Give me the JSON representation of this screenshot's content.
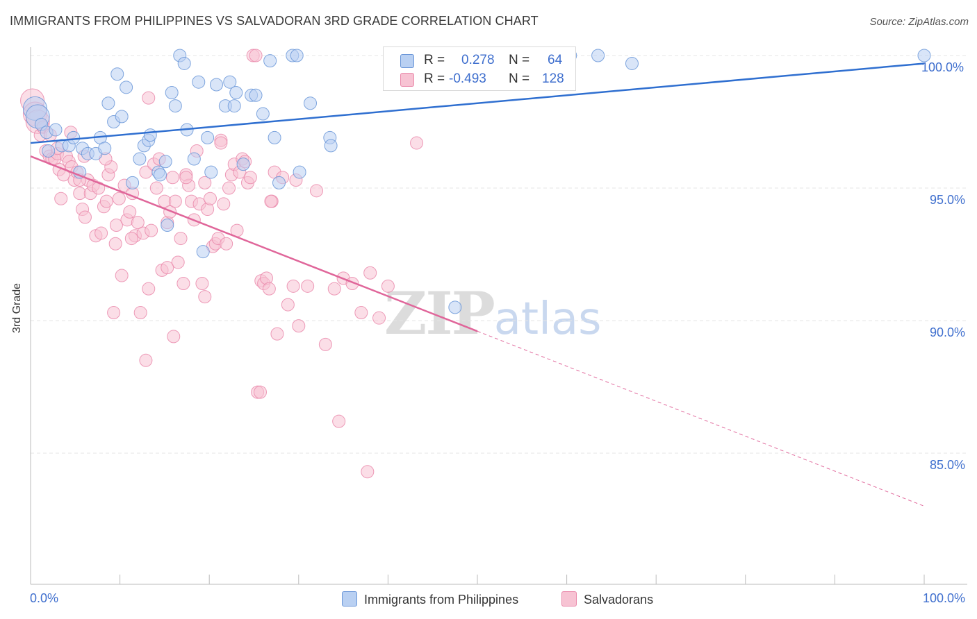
{
  "title": "IMMIGRANTS FROM PHILIPPINES VS SALVADORAN 3RD GRADE CORRELATION CHART",
  "source": "Source: ZipAtlas.com",
  "watermark": {
    "zip": "ZIP",
    "atlas": "atlas"
  },
  "legend": {
    "r_label": "R =",
    "n_label": "N =",
    "series": [
      {
        "r": "0.278",
        "n": "64"
      },
      {
        "r": "-0.493",
        "n": "128"
      }
    ]
  },
  "bottom_legend": [
    "Immigrants from Philippines",
    "Salvadorans"
  ],
  "colors": {
    "blue_fill": "#b9d0f2",
    "blue_stroke": "#6a96d8",
    "blue_line": "#2f6fd0",
    "pink_fill": "#f7c3d3",
    "pink_stroke": "#ea8aab",
    "pink_line": "#e0669a",
    "tick_text": "#3f6fce",
    "grid": "#e4e4e4"
  },
  "chart_data": {
    "type": "scatter",
    "title": "IMMIGRANTS FROM PHILIPPINES VS SALVADORAN 3RD GRADE CORRELATION CHART",
    "xlabel": "",
    "ylabel": "3rd Grade",
    "xlim": [
      0,
      100
    ],
    "ylim": [
      80.0,
      100.8
    ],
    "x_tick_labels": [
      "0.0%",
      "100.0%"
    ],
    "y_ticks": [
      85.0,
      90.0,
      95.0,
      100.0
    ],
    "y_tick_labels": [
      "85.0%",
      "90.0%",
      "95.0%",
      "100.0%"
    ],
    "grid": true,
    "legend_position": "top-center",
    "series": [
      {
        "name": "Immigrants from Philippines",
        "color": "#6a96d8",
        "trend": {
          "x": [
            0,
            100
          ],
          "y": [
            96.7,
            99.7
          ],
          "dashed_from": null
        },
        "points": [
          [
            0.5,
            98.0
          ],
          [
            0.8,
            97.7
          ],
          [
            1.2,
            97.4
          ],
          [
            1.8,
            97.1
          ],
          [
            2.0,
            96.4
          ],
          [
            2.8,
            97.2
          ],
          [
            3.5,
            96.6
          ],
          [
            4.3,
            96.6
          ],
          [
            4.8,
            96.9
          ],
          [
            5.5,
            95.6
          ],
          [
            5.8,
            96.5
          ],
          [
            6.4,
            96.3
          ],
          [
            7.3,
            96.3
          ],
          [
            7.8,
            96.9
          ],
          [
            8.3,
            96.5
          ],
          [
            8.7,
            98.2
          ],
          [
            9.3,
            97.5
          ],
          [
            9.7,
            99.3
          ],
          [
            10.2,
            97.7
          ],
          [
            10.7,
            98.8
          ],
          [
            11.4,
            95.2
          ],
          [
            12.2,
            96.1
          ],
          [
            12.7,
            96.6
          ],
          [
            13.2,
            96.8
          ],
          [
            13.4,
            97.0
          ],
          [
            14.3,
            95.6
          ],
          [
            14.5,
            95.5
          ],
          [
            15.1,
            96.0
          ],
          [
            15.3,
            93.6
          ],
          [
            15.8,
            98.6
          ],
          [
            16.2,
            98.1
          ],
          [
            16.7,
            100.0
          ],
          [
            17.2,
            99.7
          ],
          [
            17.5,
            97.2
          ],
          [
            18.3,
            96.1
          ],
          [
            18.8,
            99.0
          ],
          [
            19.3,
            92.6
          ],
          [
            19.8,
            96.9
          ],
          [
            20.2,
            95.6
          ],
          [
            20.8,
            98.9
          ],
          [
            21.8,
            98.1
          ],
          [
            22.3,
            99.0
          ],
          [
            22.8,
            98.1
          ],
          [
            23.0,
            98.6
          ],
          [
            23.8,
            95.9
          ],
          [
            24.7,
            98.5
          ],
          [
            25.2,
            98.5
          ],
          [
            26.0,
            97.8
          ],
          [
            26.8,
            99.8
          ],
          [
            27.3,
            96.9
          ],
          [
            27.8,
            95.2
          ],
          [
            29.3,
            100.0
          ],
          [
            29.8,
            100.0
          ],
          [
            30.1,
            95.6
          ],
          [
            31.3,
            98.2
          ],
          [
            33.5,
            96.9
          ],
          [
            33.6,
            96.6
          ],
          [
            47.5,
            90.5
          ],
          [
            60.4,
            100.0
          ],
          [
            63.5,
            100.0
          ],
          [
            67.3,
            99.7
          ],
          [
            100.0,
            100.0
          ]
        ]
      },
      {
        "name": "Salvadorans",
        "color": "#ea8aab",
        "trend": {
          "x": [
            0,
            100
          ],
          "y": [
            96.2,
            83.0
          ],
          "dashed_from": 50
        },
        "points": [
          [
            0.2,
            98.3
          ],
          [
            0.5,
            97.8
          ],
          [
            0.8,
            97.5
          ],
          [
            1.1,
            97.0
          ],
          [
            1.4,
            97.3
          ],
          [
            1.7,
            96.4
          ],
          [
            2.1,
            96.2
          ],
          [
            2.4,
            96.1
          ],
          [
            2.7,
            96.1
          ],
          [
            3.0,
            96.3
          ],
          [
            3.2,
            95.7
          ],
          [
            3.4,
            94.6
          ],
          [
            3.7,
            95.5
          ],
          [
            4.0,
            96.2
          ],
          [
            4.3,
            96.0
          ],
          [
            4.6,
            95.8
          ],
          [
            4.9,
            95.3
          ],
          [
            5.2,
            95.6
          ],
          [
            5.5,
            94.8
          ],
          [
            5.8,
            94.2
          ],
          [
            6.1,
            93.9
          ],
          [
            6.4,
            95.3
          ],
          [
            6.7,
            94.8
          ],
          [
            7.0,
            95.1
          ],
          [
            7.3,
            93.2
          ],
          [
            7.6,
            95.0
          ],
          [
            7.9,
            93.3
          ],
          [
            8.2,
            94.3
          ],
          [
            8.5,
            94.5
          ],
          [
            8.7,
            95.5
          ],
          [
            9.0,
            95.8
          ],
          [
            9.3,
            90.3
          ],
          [
            9.6,
            93.6
          ],
          [
            9.9,
            94.6
          ],
          [
            10.2,
            91.7
          ],
          [
            10.5,
            95.1
          ],
          [
            10.8,
            93.8
          ],
          [
            11.1,
            94.1
          ],
          [
            11.4,
            94.8
          ],
          [
            11.7,
            93.2
          ],
          [
            12.0,
            93.7
          ],
          [
            12.3,
            90.3
          ],
          [
            12.6,
            93.3
          ],
          [
            12.9,
            95.6
          ],
          [
            13.2,
            91.2
          ],
          [
            13.5,
            93.4
          ],
          [
            13.8,
            95.9
          ],
          [
            14.1,
            95.0
          ],
          [
            14.4,
            96.1
          ],
          [
            14.7,
            91.9
          ],
          [
            15.0,
            94.5
          ],
          [
            15.3,
            93.7
          ],
          [
            15.6,
            94.1
          ],
          [
            15.9,
            95.4
          ],
          [
            16.2,
            94.5
          ],
          [
            16.5,
            92.2
          ],
          [
            16.8,
            93.1
          ],
          [
            17.1,
            91.4
          ],
          [
            17.4,
            95.5
          ],
          [
            17.7,
            95.1
          ],
          [
            18.0,
            94.5
          ],
          [
            18.3,
            93.8
          ],
          [
            18.6,
            96.4
          ],
          [
            18.9,
            94.4
          ],
          [
            19.2,
            91.4
          ],
          [
            19.5,
            90.9
          ],
          [
            19.8,
            94.2
          ],
          [
            20.1,
            94.6
          ],
          [
            20.4,
            92.8
          ],
          [
            20.7,
            92.9
          ],
          [
            21.0,
            93.1
          ],
          [
            21.3,
            96.8
          ],
          [
            21.6,
            94.4
          ],
          [
            21.9,
            92.9
          ],
          [
            22.2,
            95.0
          ],
          [
            22.5,
            95.5
          ],
          [
            22.8,
            95.9
          ],
          [
            23.1,
            93.4
          ],
          [
            23.4,
            95.6
          ],
          [
            23.7,
            96.1
          ],
          [
            24.0,
            96.0
          ],
          [
            24.3,
            95.2
          ],
          [
            24.6,
            95.4
          ],
          [
            24.9,
            100.0
          ],
          [
            25.2,
            100.0
          ],
          [
            25.8,
            91.5
          ],
          [
            26.1,
            91.4
          ],
          [
            26.4,
            91.6
          ],
          [
            26.7,
            91.2
          ],
          [
            27.0,
            94.5
          ],
          [
            27.3,
            95.6
          ],
          [
            27.6,
            89.5
          ],
          [
            28.2,
            95.4
          ],
          [
            28.8,
            90.6
          ],
          [
            29.4,
            91.3
          ],
          [
            30.0,
            89.8
          ],
          [
            31.0,
            91.3
          ],
          [
            32.0,
            94.9
          ],
          [
            33.0,
            89.1
          ],
          [
            34.0,
            91.2
          ],
          [
            35.0,
            91.6
          ],
          [
            36.0,
            91.4
          ],
          [
            37.0,
            90.3
          ],
          [
            38.0,
            91.8
          ],
          [
            39.0,
            90.1
          ],
          [
            40.0,
            91.3
          ],
          [
            12.9,
            88.5
          ],
          [
            16.0,
            89.4
          ],
          [
            25.4,
            87.3
          ],
          [
            25.7,
            87.3
          ],
          [
            34.5,
            86.2
          ],
          [
            37.7,
            84.3
          ],
          [
            43.2,
            96.7
          ],
          [
            13.2,
            98.4
          ],
          [
            21.3,
            96.7
          ],
          [
            17.4,
            95.4
          ],
          [
            19.5,
            95.2
          ],
          [
            5.5,
            95.3
          ],
          [
            8.4,
            96.1
          ],
          [
            26.9,
            94.5
          ],
          [
            29.7,
            95.3
          ],
          [
            11.3,
            93.1
          ],
          [
            15.3,
            92.0
          ],
          [
            9.5,
            92.9
          ],
          [
            3.0,
            96.5
          ],
          [
            6.0,
            96.2
          ],
          [
            2.2,
            97.0
          ],
          [
            4.5,
            97.1
          ]
        ]
      }
    ]
  }
}
